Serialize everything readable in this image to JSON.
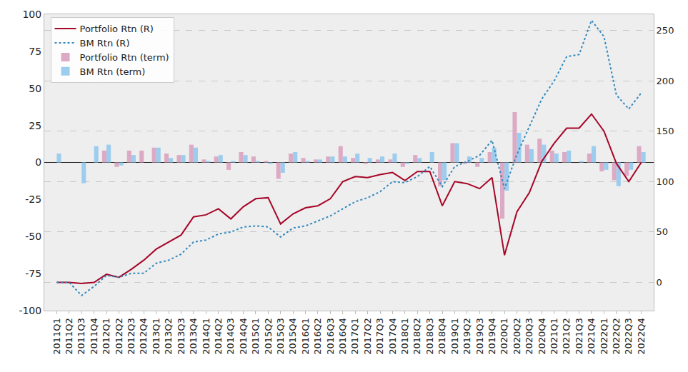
{
  "chart_data": {
    "type": "bar",
    "categories": [
      "2011Q1",
      "2011Q2",
      "2011Q3",
      "2011Q4",
      "2012Q1",
      "2012Q2",
      "2012Q3",
      "2012Q4",
      "2013Q1",
      "2013Q2",
      "2013Q3",
      "2013Q4",
      "2014Q1",
      "2014Q2",
      "2014Q3",
      "2014Q4",
      "2015Q1",
      "2015Q2",
      "2015Q3",
      "2015Q4",
      "2016Q1",
      "2016Q2",
      "2016Q3",
      "2016Q4",
      "2017Q1",
      "2017Q2",
      "2017Q3",
      "2017Q4",
      "2018Q1",
      "2018Q2",
      "2018Q3",
      "2018Q4",
      "2019Q1",
      "2019Q2",
      "2019Q3",
      "2019Q4",
      "2020Q1",
      "2020Q2",
      "2020Q3",
      "2020Q4",
      "2021Q1",
      "2021Q2",
      "2021Q3",
      "2021Q4",
      "2022Q1",
      "2022Q2",
      "2022Q3",
      "2022Q4"
    ],
    "series": [
      {
        "name": "Portfolio Rtn (R)",
        "type": "line",
        "axis": "y2",
        "color": "#a60628",
        "line_style": "solid",
        "values": [
          0,
          0,
          -1,
          0,
          8,
          5,
          13,
          22,
          33,
          40,
          47,
          65,
          67,
          73,
          63,
          75,
          83,
          84,
          58,
          68,
          74,
          76,
          83,
          100,
          105,
          104,
          107,
          109,
          101,
          110,
          110,
          76,
          100,
          98,
          93,
          104,
          27,
          70,
          89,
          120,
          138,
          153,
          153,
          167,
          150,
          118,
          100,
          119
        ]
      },
      {
        "name": "BM Rtn (R)",
        "type": "line",
        "axis": "y2",
        "color": "#348abd",
        "line_style": "dotted",
        "values": [
          0,
          0,
          -13,
          -4,
          7,
          5,
          9,
          9,
          19,
          22,
          28,
          40,
          42,
          48,
          50,
          55,
          56,
          55,
          45,
          54,
          56,
          61,
          66,
          73,
          80,
          84,
          90,
          100,
          99,
          105,
          115,
          95,
          115,
          120,
          126,
          141,
          93,
          127,
          155,
          182,
          200,
          224,
          226,
          260,
          244,
          186,
          172,
          188
        ]
      },
      {
        "name": "Portfolio Rtn (term)",
        "type": "bar",
        "color": "#dcaac4",
        "values": [
          0,
          0,
          0,
          0,
          8,
          -3,
          8,
          8,
          10,
          6,
          5,
          12,
          2,
          4,
          -5,
          7,
          4,
          1,
          -11,
          6,
          3,
          2,
          4,
          11,
          3,
          -1,
          2,
          2,
          -3,
          5,
          0,
          -16,
          13,
          -1,
          -3,
          7,
          -38,
          34,
          12,
          16,
          8,
          7,
          0,
          6,
          -6,
          -12,
          -9,
          11
        ]
      },
      {
        "name": "BM Rtn (term)",
        "type": "bar",
        "color": "#9dcdee",
        "values": [
          6,
          0,
          -14,
          11,
          12,
          -2,
          5,
          0,
          10,
          3,
          5,
          10,
          1,
          5,
          1,
          5,
          1,
          -1,
          -7,
          7,
          1,
          2,
          4,
          4,
          6,
          3,
          4,
          6,
          -1,
          3,
          7,
          -12,
          13,
          4,
          3,
          10,
          -19,
          20,
          9,
          12,
          6,
          8,
          1,
          11,
          -5,
          -16,
          -5,
          7
        ]
      }
    ],
    "ylim": [
      -100,
      100
    ],
    "yticks": [
      -100,
      -75,
      -50,
      -25,
      0,
      25,
      50,
      75,
      100
    ],
    "y2lim": [
      -28,
      266
    ],
    "y2ticks": [
      0,
      50,
      100,
      150,
      200,
      250
    ],
    "grid": true,
    "legend": "upper left"
  }
}
